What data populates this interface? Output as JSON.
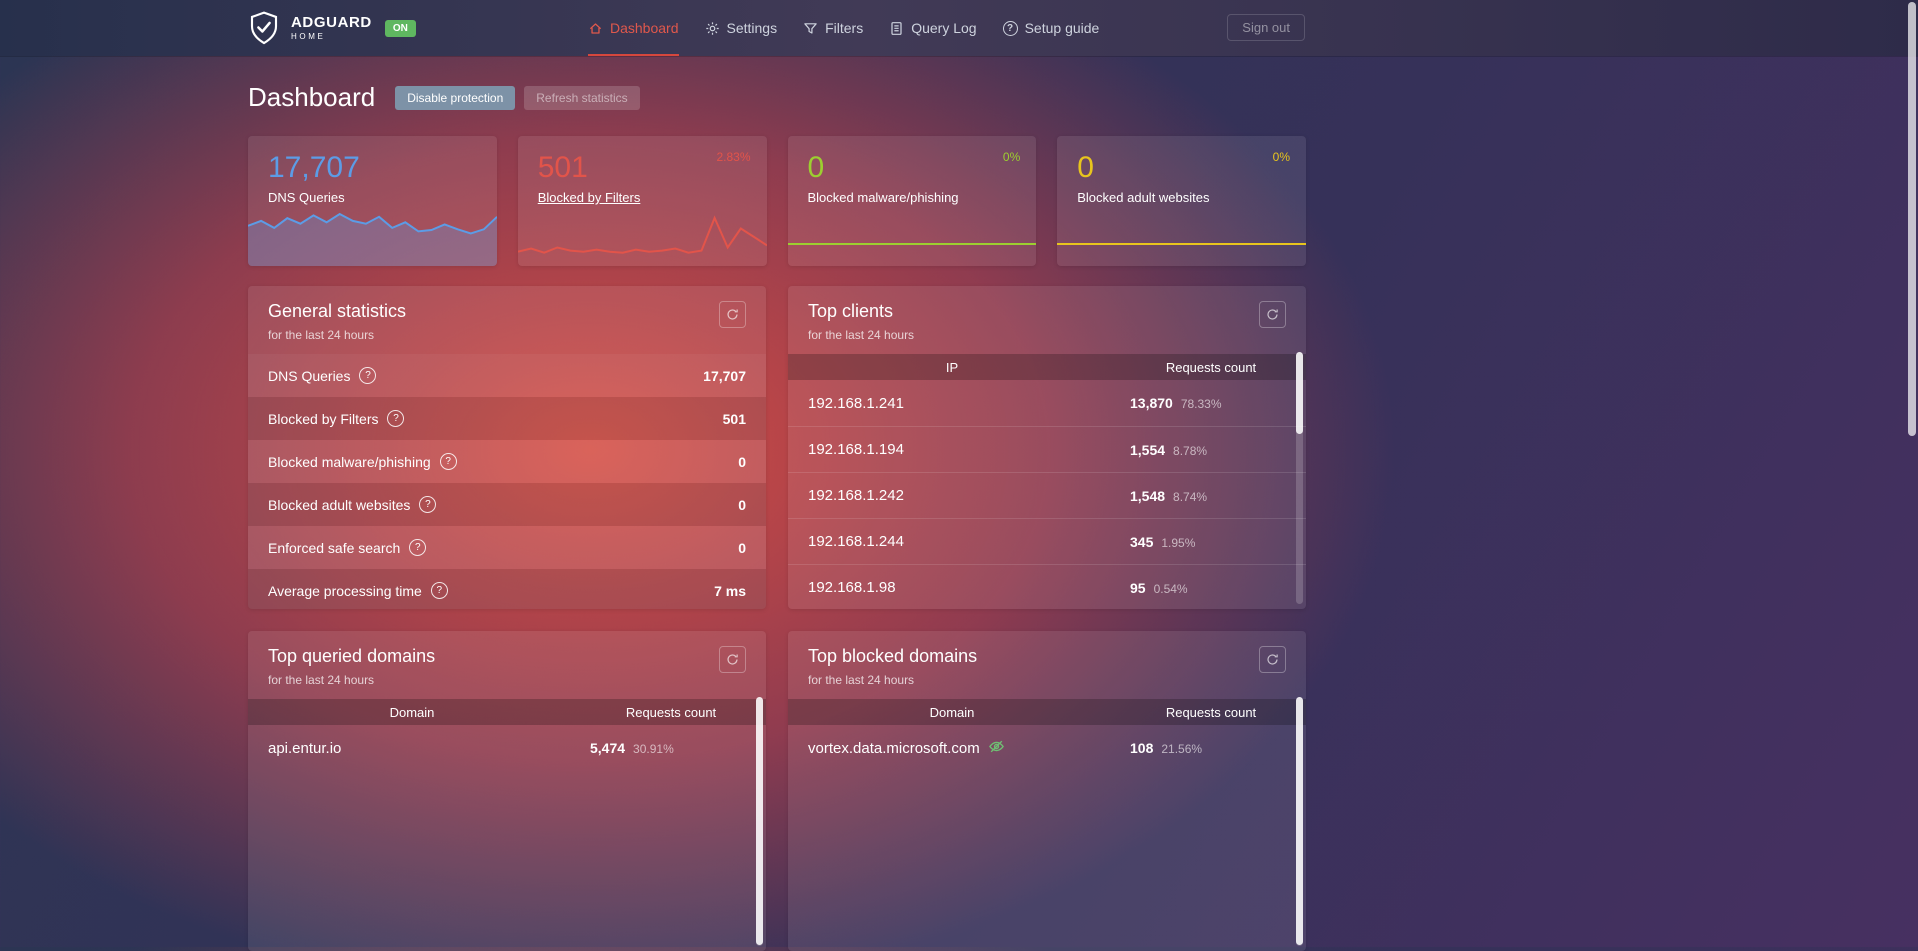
{
  "icons": {
    "help": "?"
  },
  "nav": {
    "brand": {
      "name": "ADGUARD",
      "sub": "HOME",
      "status": "ON"
    },
    "items": [
      {
        "label": "Dashboard"
      },
      {
        "label": "Settings"
      },
      {
        "label": "Filters"
      },
      {
        "label": "Query Log"
      },
      {
        "label": "Setup guide"
      }
    ],
    "sign_out": "Sign out"
  },
  "page": {
    "title": "Dashboard",
    "buttons": {
      "disable": "Disable protection",
      "refresh": "Refresh statistics"
    }
  },
  "stat_cards": [
    {
      "value": "17,707",
      "label": "DNS Queries",
      "percent": "",
      "color": "#5c9ce6",
      "spark": [
        55,
        62,
        52,
        66,
        58,
        70,
        60,
        72,
        62,
        58,
        68,
        52,
        60,
        47,
        49,
        57,
        50,
        44,
        50,
        68
      ]
    },
    {
      "value": "501",
      "label": "Blocked by Filters",
      "percent": "2.83%",
      "color": "#e2544a",
      "spark": [
        6,
        9,
        5,
        10,
        7,
        6,
        8,
        6,
        5,
        8,
        6,
        7,
        9,
        5,
        7,
        38,
        10,
        28,
        20,
        12
      ]
    },
    {
      "value": "0",
      "label": "Blocked malware/phishing",
      "percent": "0%",
      "color": "#9ccf30",
      "spark": [
        0,
        0,
        0,
        0,
        0,
        0,
        0,
        0,
        0,
        0
      ]
    },
    {
      "value": "0",
      "label": "Blocked adult websites",
      "percent": "0%",
      "color": "#e8c51d",
      "spark": [
        0,
        0,
        0,
        0,
        0,
        0,
        0,
        0,
        0,
        0
      ]
    }
  ],
  "general_stats": {
    "title": "General statistics",
    "subtitle": "for the last 24 hours",
    "rows": [
      {
        "label": "DNS Queries",
        "value": "17,707"
      },
      {
        "label": "Blocked by Filters",
        "value": "501"
      },
      {
        "label": "Blocked malware/phishing",
        "value": "0"
      },
      {
        "label": "Blocked adult websites",
        "value": "0"
      },
      {
        "label": "Enforced safe search",
        "value": "0"
      },
      {
        "label": "Average processing time",
        "value": "7 ms"
      }
    ]
  },
  "top_clients": {
    "title": "Top clients",
    "subtitle": "for the last 24 hours",
    "columns": [
      "IP",
      "Requests count"
    ],
    "rows": [
      {
        "ip": "192.168.1.241",
        "count": "13,870",
        "percent": "78.33%",
        "pct": 78.33,
        "color": "#8bc34a"
      },
      {
        "ip": "192.168.1.194",
        "count": "1,554",
        "percent": "8.78%",
        "pct": 8.78,
        "color": "#d2322d"
      },
      {
        "ip": "192.168.1.242",
        "count": "1,548",
        "percent": "8.74%",
        "pct": 8.74,
        "color": "#d2322d"
      },
      {
        "ip": "192.168.1.244",
        "count": "345",
        "percent": "1.95%",
        "pct": 1.95,
        "color": "#d2322d"
      },
      {
        "ip": "192.168.1.98",
        "count": "95",
        "percent": "0.54%",
        "pct": 0.54,
        "color": "#d2322d"
      }
    ]
  },
  "top_queried": {
    "title": "Top queried domains",
    "subtitle": "for the last 24 hours",
    "columns": [
      "Domain",
      "Requests count"
    ],
    "rows": [
      {
        "domain": "api.entur.io",
        "count": "5,474",
        "percent": "30.91%",
        "pct": 30.91,
        "color": "#d2322d"
      }
    ]
  },
  "top_blocked": {
    "title": "Top blocked domains",
    "subtitle": "for the last 24 hours",
    "columns": [
      "Domain",
      "Requests count"
    ],
    "rows": [
      {
        "domain": "vortex.data.microsoft.com",
        "count": "108",
        "percent": "21.56%",
        "pct": 21.56,
        "color": "#d2322d"
      }
    ]
  }
}
